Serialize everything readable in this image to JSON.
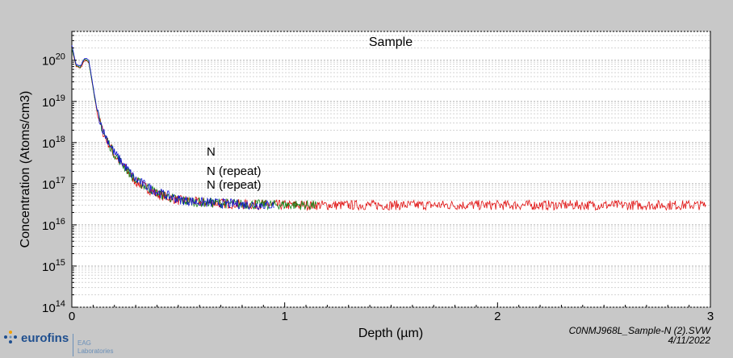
{
  "chart_data": {
    "type": "line",
    "title": "Sample",
    "xlabel": "Depth (µm)",
    "ylabel": "Concentration (Atoms/cm3)",
    "xlim": [
      0,
      3
    ],
    "ylim_log10": [
      14,
      20.7
    ],
    "y_scale": "log",
    "x_ticks": [
      "0",
      "1",
      "2",
      "3"
    ],
    "y_tick_exponents": [
      "20",
      "19",
      "18",
      "17",
      "16",
      "15",
      "14"
    ],
    "y_tick_base": "10",
    "grid": true,
    "legend_placement": "center-left",
    "series": [
      {
        "name": "N",
        "color": "#e01010",
        "x_end": 2.98,
        "profile": [
          [
            0,
            20.3
          ],
          [
            0.02,
            19.85
          ],
          [
            0.04,
            19.8
          ],
          [
            0.06,
            20.0
          ],
          [
            0.08,
            19.95
          ],
          [
            0.1,
            19.3
          ],
          [
            0.12,
            18.7
          ],
          [
            0.15,
            18.2
          ],
          [
            0.2,
            17.7
          ],
          [
            0.3,
            17.05
          ],
          [
            0.4,
            16.75
          ],
          [
            0.5,
            16.6
          ],
          [
            0.6,
            16.55
          ],
          [
            0.8,
            16.5
          ],
          [
            1.0,
            16.48
          ],
          [
            3.0,
            16.48
          ]
        ]
      },
      {
        "name": "N (repeat)",
        "color": "#1010d0",
        "x_end": 0.95,
        "profile": [
          [
            0,
            20.35
          ],
          [
            0.02,
            19.9
          ],
          [
            0.04,
            19.85
          ],
          [
            0.06,
            20.05
          ],
          [
            0.08,
            20.0
          ],
          [
            0.1,
            19.35
          ],
          [
            0.12,
            18.75
          ],
          [
            0.15,
            18.25
          ],
          [
            0.2,
            17.75
          ],
          [
            0.3,
            17.1
          ],
          [
            0.4,
            16.8
          ],
          [
            0.5,
            16.62
          ],
          [
            0.6,
            16.55
          ],
          [
            0.8,
            16.5
          ],
          [
            0.95,
            16.48
          ]
        ]
      },
      {
        "name": "N (repeat)",
        "color": "#108010",
        "x_end": 1.15,
        "profile": [
          [
            0,
            20.3
          ],
          [
            0.02,
            19.88
          ],
          [
            0.04,
            19.83
          ],
          [
            0.06,
            20.02
          ],
          [
            0.08,
            19.97
          ],
          [
            0.1,
            19.32
          ],
          [
            0.12,
            18.72
          ],
          [
            0.15,
            18.22
          ],
          [
            0.2,
            17.72
          ],
          [
            0.3,
            17.07
          ],
          [
            0.4,
            16.78
          ],
          [
            0.5,
            16.6
          ],
          [
            0.6,
            16.55
          ],
          [
            0.8,
            16.5
          ],
          [
            1.15,
            16.48
          ]
        ]
      }
    ]
  },
  "footer": {
    "filename": "C0NMJ968L_Sample-N (2).SVW",
    "date": "4/11/2022",
    "logo_text": "eurofins",
    "logo_sub1": "EAG",
    "logo_sub2": "Laboratories"
  }
}
